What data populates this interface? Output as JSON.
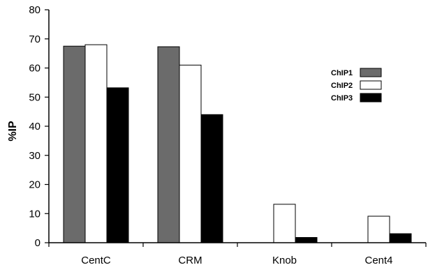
{
  "chart_data": {
    "type": "bar",
    "title": "",
    "xlabel": "",
    "ylabel": "%IP",
    "ylim": [
      0,
      80
    ],
    "yticks": [
      0,
      10,
      20,
      30,
      40,
      50,
      60,
      70,
      80
    ],
    "grid": false,
    "legend_position": "right",
    "categories": [
      "CentC",
      "CRM",
      "Knob",
      "Cent4"
    ],
    "series": [
      {
        "name": "ChIP1",
        "color": "#6b6b6b",
        "values": [
          67.5,
          67.3,
          0,
          0
        ]
      },
      {
        "name": "ChIP2",
        "color": "#ffffff",
        "values": [
          68,
          61,
          13.2,
          9.1
        ]
      },
      {
        "name": "ChIP3",
        "color": "#000000",
        "values": [
          53.2,
          44,
          1.8,
          3.1
        ]
      }
    ]
  }
}
